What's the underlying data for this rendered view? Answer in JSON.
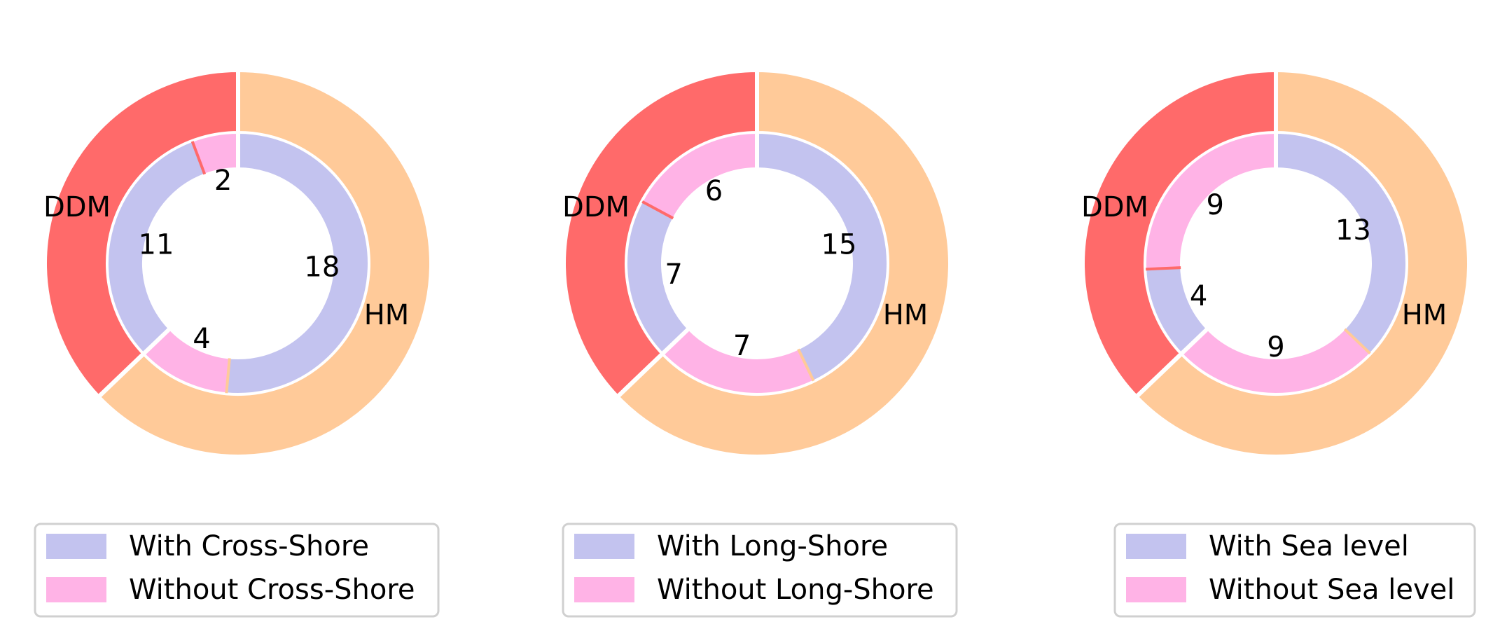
{
  "colors": {
    "ddm": "#ff6a6a",
    "hm": "#ffca99",
    "with": "#c3c3ef",
    "without": "#ffb3e6",
    "separator": "#ffffff"
  },
  "chart_data": [
    {
      "type": "pie",
      "outer": {
        "categories": [
          "DDM",
          "HM"
        ],
        "values": [
          13,
          22
        ]
      },
      "inner": {
        "segments": [
          {
            "group": "DDM",
            "kind": "without",
            "value": 2
          },
          {
            "group": "DDM",
            "kind": "with",
            "value": 11
          },
          {
            "group": "HM",
            "kind": "without",
            "value": 4
          },
          {
            "group": "HM",
            "kind": "with",
            "value": 18
          }
        ]
      },
      "legend": {
        "with_label": "With Cross-Shore",
        "without_label": "Without Cross-Shore",
        "placement": "bottom"
      }
    },
    {
      "type": "pie",
      "outer": {
        "categories": [
          "DDM",
          "HM"
        ],
        "values": [
          13,
          22
        ]
      },
      "inner": {
        "segments": [
          {
            "group": "DDM",
            "kind": "without",
            "value": 6
          },
          {
            "group": "DDM",
            "kind": "with",
            "value": 7
          },
          {
            "group": "HM",
            "kind": "without",
            "value": 7
          },
          {
            "group": "HM",
            "kind": "with",
            "value": 15
          }
        ]
      },
      "legend": {
        "with_label": "With Long-Shore",
        "without_label": "Without Long-Shore",
        "placement": "bottom"
      }
    },
    {
      "type": "pie",
      "outer": {
        "categories": [
          "DDM",
          "HM"
        ],
        "values": [
          13,
          22
        ]
      },
      "inner": {
        "segments": [
          {
            "group": "DDM",
            "kind": "without",
            "value": 9
          },
          {
            "group": "DDM",
            "kind": "with",
            "value": 4
          },
          {
            "group": "HM",
            "kind": "without",
            "value": 9
          },
          {
            "group": "HM",
            "kind": "with",
            "value": 13
          }
        ]
      },
      "legend": {
        "with_label": "With Sea level",
        "without_label": "Without Sea level",
        "placement": "bottom"
      }
    }
  ]
}
